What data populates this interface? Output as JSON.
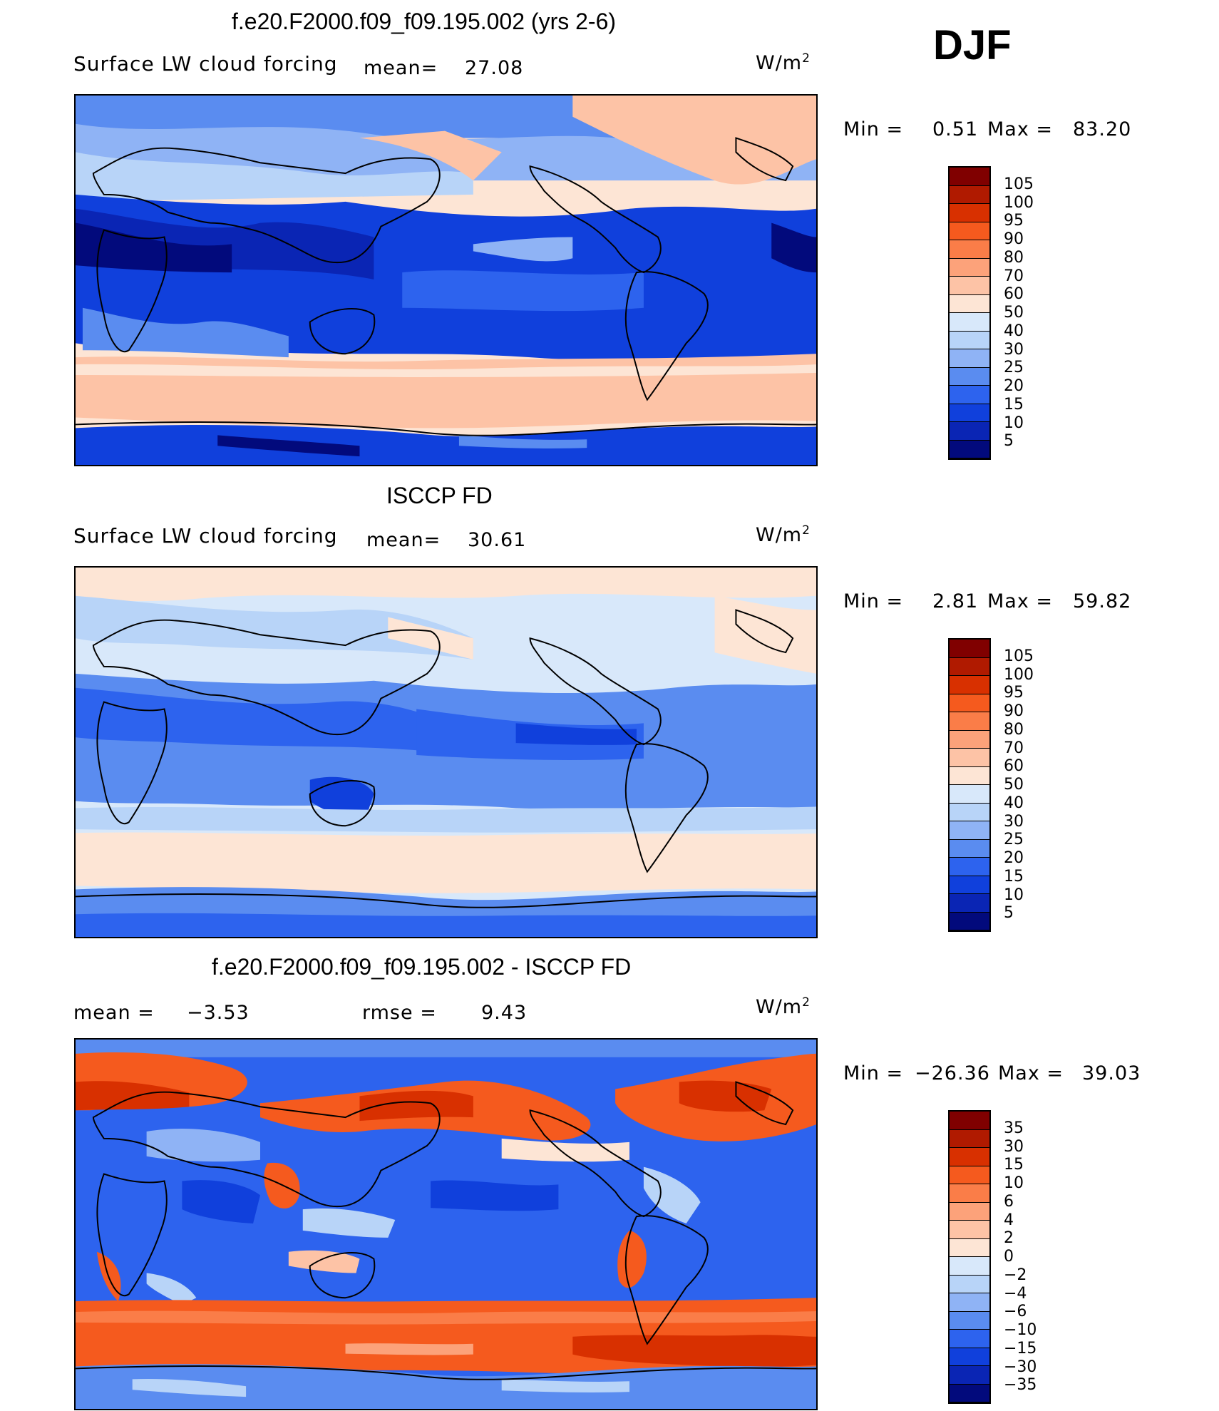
{
  "season": "DJF",
  "panels": [
    {
      "title": "f.e20.F2000.f09_f09.195.002 (yrs 2-6)",
      "field": "Surface LW cloud forcing",
      "stat1": "mean=",
      "stat1_value": "27.08",
      "units": "W/m",
      "units_exp": "2",
      "min_label": "Min  =",
      "min_value": "0.51",
      "max_label": "Max  =",
      "max_value": "83.20",
      "scale": "abs"
    },
    {
      "title": "ISCCP FD",
      "field": "Surface LW cloud forcing",
      "stat1": "mean=",
      "stat1_value": "30.61",
      "units": "W/m",
      "units_exp": "2",
      "min_label": "Min  =",
      "min_value": "2.81",
      "max_label": "Max  =",
      "max_value": "59.82",
      "scale": "abs"
    },
    {
      "title": "f.e20.F2000.f09_f09.195.002 - ISCCP FD",
      "stat1": "mean  =",
      "stat1_value": "−3.53",
      "stat2": "rmse  =",
      "stat2_value": "9.43",
      "units": "W/m",
      "units_exp": "2",
      "min_label": "Min  =",
      "min_value": "−26.36",
      "max_label": "Max  =",
      "max_value": "39.03",
      "scale": "diff"
    }
  ],
  "colorbars": {
    "abs": {
      "labels": [
        "105",
        "100",
        "95",
        "90",
        "80",
        "70",
        "60",
        "50",
        "40",
        "30",
        "25",
        "20",
        "15",
        "10",
        "5"
      ],
      "colors": [
        "#800000",
        "#b01a00",
        "#d83000",
        "#f55a1e",
        "#fa7d48",
        "#fca27a",
        "#fdc3a6",
        "#fde5d5",
        "#d8e8fa",
        "#b8d4f8",
        "#8fb3f5",
        "#5a8cf0",
        "#2d63ee",
        "#1040dc",
        "#0a25b4",
        "#020a7c"
      ]
    },
    "diff": {
      "labels": [
        "35",
        "30",
        "15",
        "10",
        "6",
        "4",
        "2",
        "0",
        "−2",
        "−4",
        "−6",
        "−10",
        "−15",
        "−30",
        "−35"
      ],
      "colors": [
        "#800000",
        "#b01a00",
        "#d83000",
        "#f55a1e",
        "#fa7d48",
        "#fca27a",
        "#fdc3a6",
        "#fde5d5",
        "#d8e8fa",
        "#b8d4f8",
        "#8fb3f5",
        "#5a8cf0",
        "#2d63ee",
        "#1040dc",
        "#0a25b4",
        "#020a7c"
      ]
    }
  }
}
